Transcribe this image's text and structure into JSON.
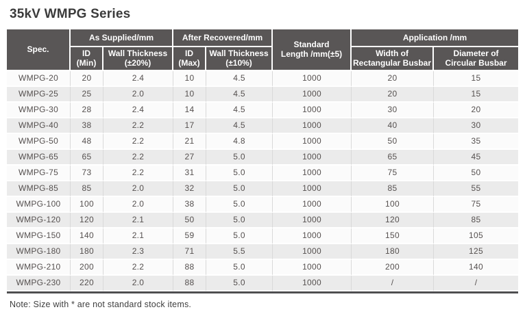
{
  "title": "35kV WMPG Series",
  "note": "Note: Size with * are not standard stock items.",
  "colors": {
    "header_bg": "#595656",
    "header_text": "#ffffff",
    "row_stripe_light": "#fbfbfb",
    "row_stripe_dark": "#ebebeb",
    "cell_divider": "#d9d9d9",
    "table_bottom_rule": "#4e4e50",
    "body_text": "#55504f",
    "title_text": "#3b3b3b"
  },
  "table": {
    "header": {
      "spec": "Spec.",
      "as_supplied": "As Supplied/mm",
      "after_recovered": "After Recovered/mm",
      "standard_length_line1": "Standard",
      "standard_length_line2": "Length /mm(±5)",
      "application": "Application /mm",
      "id_min_line1": "ID",
      "id_min_line2": "(Min)",
      "wall_20_line1": "Wall Thickness",
      "wall_20_line2": "(±20%)",
      "id_max_line1": "ID",
      "id_max_line2": "(Max)",
      "wall_10_line1": "Wall Thickness",
      "wall_10_line2": "(±10%)",
      "width_line1": "Width of",
      "width_line2": "Rectangular Busbar",
      "diameter_line1": "Diameter of",
      "diameter_line2": "Circular Busbar"
    },
    "rows": [
      [
        "WMPG-20",
        "20",
        "2.4",
        "10",
        "4.5",
        "1000",
        "20",
        "15"
      ],
      [
        "WMPG-25",
        "25",
        "2.0",
        "10",
        "4.5",
        "1000",
        "20",
        "15"
      ],
      [
        "WMPG-30",
        "28",
        "2.4",
        "14",
        "4.5",
        "1000",
        "30",
        "20"
      ],
      [
        "WMPG-40",
        "38",
        "2.2",
        "17",
        "4.5",
        "1000",
        "40",
        "30"
      ],
      [
        "WMPG-50",
        "48",
        "2.2",
        "21",
        "4.8",
        "1000",
        "50",
        "35"
      ],
      [
        "WMPG-65",
        "65",
        "2.2",
        "27",
        "5.0",
        "1000",
        "65",
        "45"
      ],
      [
        "WMPG-75",
        "73",
        "2.2",
        "31",
        "5.0",
        "1000",
        "75",
        "50"
      ],
      [
        "WMPG-85",
        "85",
        "2.0",
        "32",
        "5.0",
        "1000",
        "85",
        "55"
      ],
      [
        "WMPG-100",
        "100",
        "2.0",
        "38",
        "5.0",
        "1000",
        "100",
        "75"
      ],
      [
        "WMPG-120",
        "120",
        "2.1",
        "50",
        "5.0",
        "1000",
        "120",
        "85"
      ],
      [
        "WMPG-150",
        "140",
        "2.1",
        "59",
        "5.0",
        "1000",
        "150",
        "105"
      ],
      [
        "WMPG-180",
        "180",
        "2.3",
        "71",
        "5.5",
        "1000",
        "180",
        "125"
      ],
      [
        "WMPG-210",
        "200",
        "2.2",
        "88",
        "5.0",
        "1000",
        "200",
        "140"
      ],
      [
        "WMPG-230",
        "220",
        "2.0",
        "88",
        "5.0",
        "1000",
        "/",
        "/"
      ]
    ]
  }
}
